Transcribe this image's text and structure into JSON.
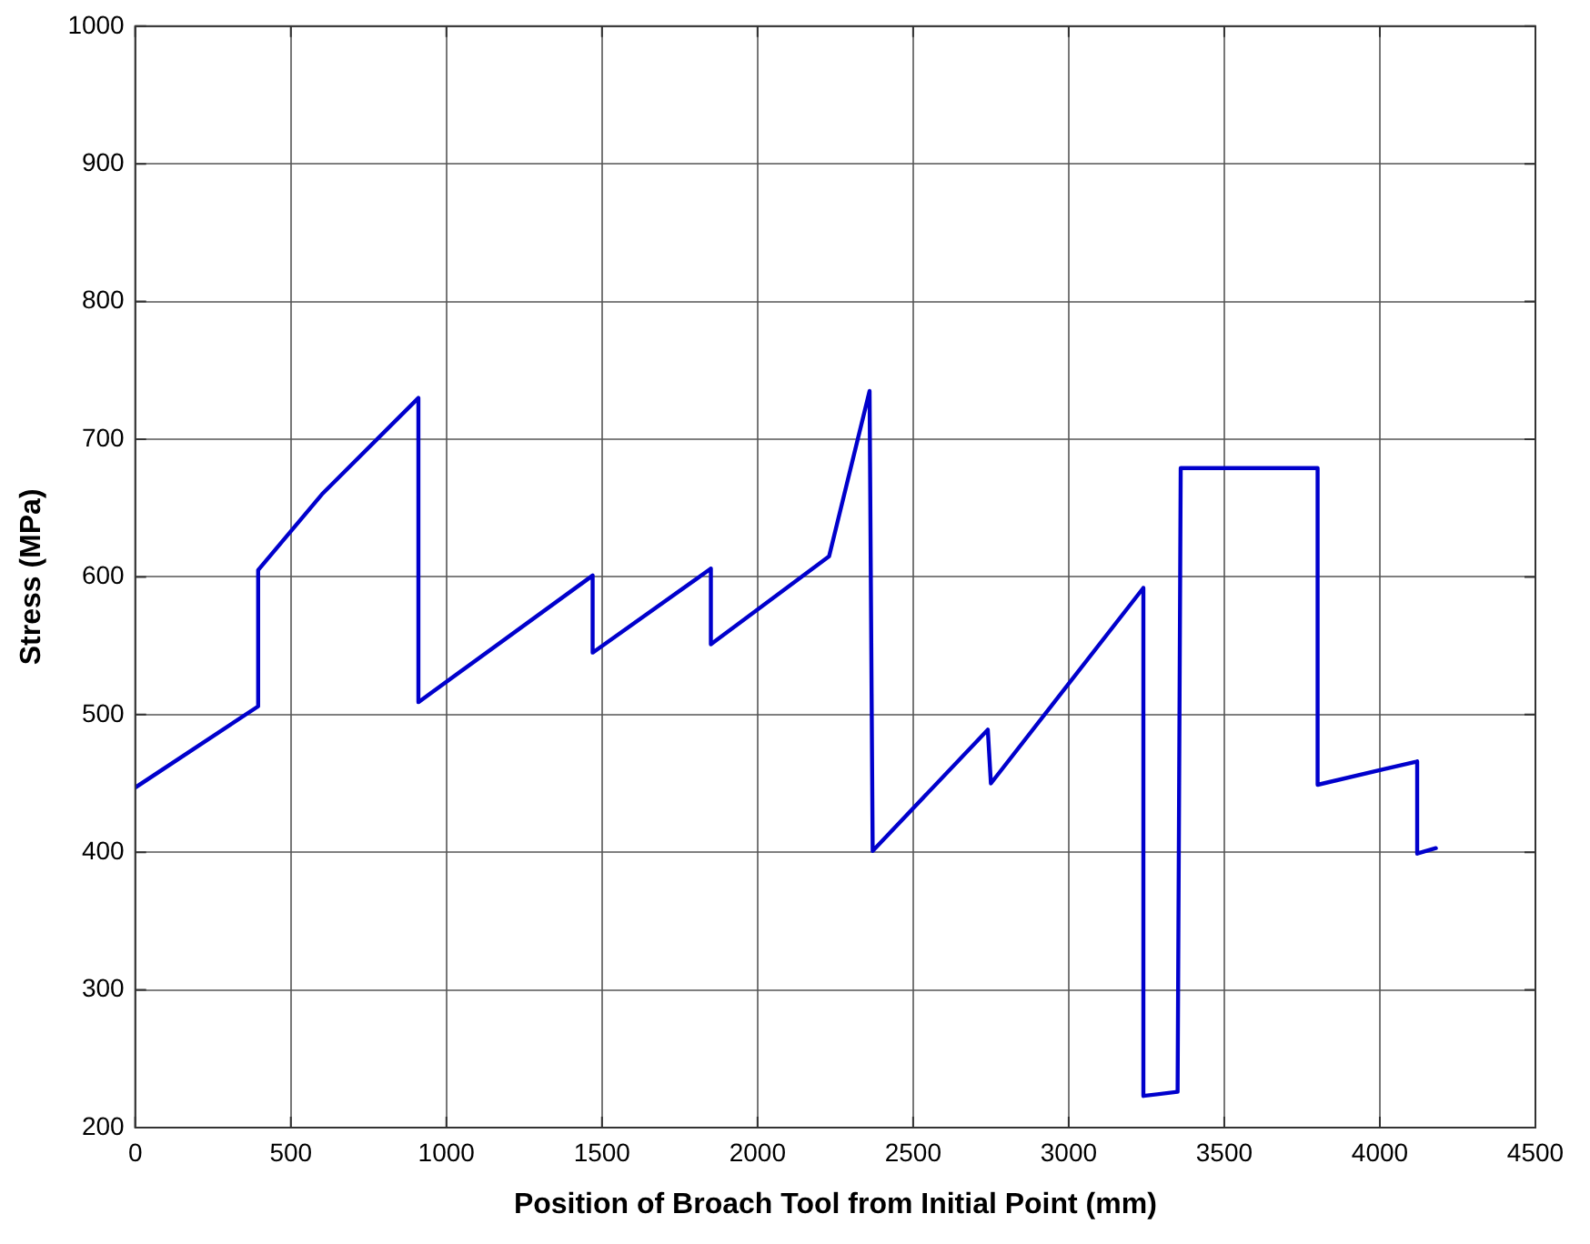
{
  "chart_data": {
    "type": "line",
    "xlabel": "Position of Broach Tool from Initial Point (mm)",
    "ylabel": "Stress (MPa)",
    "xlim": [
      0,
      4500
    ],
    "xticks": [
      0,
      500,
      1000,
      1500,
      2000,
      2500,
      3000,
      3500,
      4000,
      4500
    ],
    "ylim": [
      200,
      1000
    ],
    "yticks": [
      200,
      300,
      400,
      500,
      600,
      700,
      800,
      900,
      1000
    ],
    "grid": true,
    "legend": false,
    "marker": "none",
    "line_style": "solid",
    "series": [
      {
        "color": "#0000cc",
        "x": [
          0,
          395,
          395,
          600,
          910,
          910,
          1470,
          1470,
          1850,
          1850,
          2230,
          2360,
          2370,
          2740,
          2750,
          3240,
          3240,
          3350,
          3360,
          3800,
          3800,
          4120,
          4120,
          4180
        ],
        "values": [
          447,
          506,
          605,
          660,
          730,
          509,
          601,
          545,
          606,
          551,
          615,
          735,
          401,
          489,
          450,
          592,
          223,
          226,
          679,
          679,
          449,
          466,
          399,
          403
        ]
      }
    ]
  }
}
